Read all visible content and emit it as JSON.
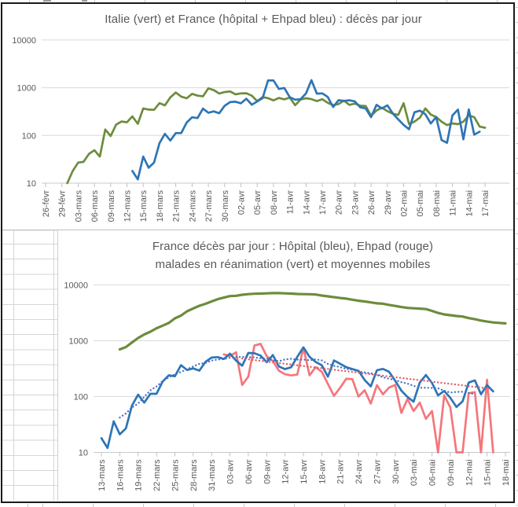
{
  "chart_data": [
    {
      "type": "line",
      "title": "Italie (vert) et France (hôpital + Ehpad bleu) : décès par jour",
      "y_scale": "log",
      "ylim": [
        10,
        10000
      ],
      "y_tick_labels": [
        "10",
        "100",
        "1000",
        "10000"
      ],
      "x_tick_interval_days": 3,
      "x_tick_labels": [
        "26-févr",
        "29-févr",
        "03-mars",
        "06-mars",
        "09-mars",
        "12-mars",
        "15-mars",
        "18-mars",
        "21-mars",
        "24-mars",
        "27-mars",
        "30-mars",
        "02-avr",
        "05-avr",
        "08-avr",
        "11-avr",
        "14-avr",
        "17-avr",
        "20-avr",
        "23-avr",
        "26-avr",
        "29-avr",
        "02-mai",
        "05-mai",
        "08-mai",
        "11-mai",
        "14-mai",
        "17-mai"
      ],
      "grid": "horizontal",
      "legend": "none",
      "series": [
        {
          "id": "italie",
          "name": "Italie (vert)",
          "color": "#6d8c3c",
          "line_style": "solid",
          "start_offset_days": 4,
          "values": [
            10,
            18,
            27,
            28,
            41,
            49,
            36,
            133,
            97,
            168,
            196,
            189,
            250,
            175,
            368,
            349,
            345,
            475,
            427,
            627,
            793,
            651,
            601,
            743,
            683,
            662,
            969,
            889,
            756,
            812,
            837,
            727,
            760,
            766,
            681,
            525,
            636,
            604,
            542,
            610,
            570,
            619,
            431,
            566,
            602,
            578,
            525,
            575,
            482,
            433,
            454,
            534,
            437,
            464,
            420,
            415,
            260,
            333,
            382,
            323,
            285,
            269,
            474,
            174,
            195,
            236,
            369,
            274,
            243,
            194,
            165,
            179,
            172,
            195,
            262,
            242,
            153,
            145
          ]
        },
        {
          "id": "france-hopital-ehpad",
          "name": "France hôpital + Ehpad (bleu)",
          "color": "#2e75b6",
          "line_style": "solid",
          "start_offset_days": 16,
          "values": [
            18,
            12,
            36,
            21,
            27,
            69,
            108,
            78,
            112,
            112,
            186,
            240,
            231,
            365,
            299,
            319,
            292,
            418,
            499,
            509,
            471,
            588,
            441,
            515,
            605,
            1417,
            1422,
            941,
            987,
            635,
            561,
            574,
            762,
            1438,
            753,
            761,
            642,
            395,
            547,
            531,
            544,
            516,
            389,
            369,
            242,
            437,
            367,
            427,
            289,
            218,
            166,
            135,
            306,
            330,
            278,
            178,
            243,
            80,
            70,
            263,
            348,
            83,
            351,
            104,
            120
          ]
        }
      ]
    },
    {
      "type": "line",
      "title_line1": "France décès par jour : Hôpital (bleu), Ehpad (rouge)",
      "title_line2": "malades en réanimation (vert) et moyennes mobiles",
      "y_scale": "log",
      "ylim": [
        10,
        10000
      ],
      "y_tick_labels": [
        "10",
        "100",
        "1000",
        "10000"
      ],
      "x_tick_interval_days": 3,
      "x_tick_labels": [
        "13-mars",
        "16-mars",
        "19-mars",
        "22-mars",
        "25-mars",
        "28-mars",
        "31-mars",
        "03-avr",
        "06-avr",
        "09-avr",
        "12-avr",
        "15-avr",
        "18-avr",
        "21-avr",
        "24-avr",
        "27-avr",
        "30-avr",
        "03-mai",
        "06-mai",
        "09-mai",
        "12-mai",
        "15-mai",
        "18-mai"
      ],
      "grid": "horizontal",
      "legend": "none",
      "series": [
        {
          "id": "reanimation",
          "name": "malades en réanimation (vert)",
          "color": "#6d8c3c",
          "line_style": "solid",
          "start_offset_days": 3,
          "values": [
            699,
            771,
            931,
            1122,
            1297,
            1453,
            1674,
            1861,
            2082,
            2516,
            2827,
            3375,
            3787,
            4236,
            4592,
            5056,
            5565,
            5940,
            6305,
            6399,
            6662,
            6838,
            6953,
            7004,
            7066,
            7131,
            7148,
            7066,
            7004,
            6883,
            6845,
            6821,
            6730,
            6457,
            6248,
            6027,
            5833,
            5683,
            5433,
            5218,
            5053,
            4870,
            4682,
            4608,
            4387,
            4207,
            4019,
            3878,
            3819,
            3770,
            3696,
            3430,
            3147,
            2961,
            2868,
            2776,
            2712,
            2542,
            2428,
            2299,
            2203,
            2132,
            2087,
            2048
          ]
        },
        {
          "id": "hopital",
          "name": "Hôpital décès par jour (bleu)",
          "color": "#2e75b6",
          "line_style": "solid",
          "start_offset_days": 0,
          "values": [
            18,
            12,
            36,
            21,
            27,
            69,
            108,
            78,
            112,
            112,
            186,
            240,
            231,
            365,
            299,
            319,
            292,
            418,
            499,
            509,
            471,
            588,
            441,
            357,
            605,
            597,
            541,
            412,
            554,
            345,
            310,
            335,
            514,
            762,
            514,
            418,
            364,
            227,
            444,
            387,
            336,
            311,
            289,
            198,
            152,
            295,
            313,
            278,
            191,
            128,
            98,
            81,
            178,
            243,
            175,
            105,
            126,
            95,
            65,
            82,
            178,
            195,
            110,
            160,
            124
          ]
        },
        {
          "id": "ehpad",
          "name": "Ehpad décès par jour (rouge)",
          "color": "#f4767c",
          "line_style": "solid",
          "start_offset_days": 20,
          "values": [
            570,
            532,
            620,
            161,
            228,
            820,
            881,
            529,
            433,
            290,
            251,
            239,
            248,
            755,
            240,
            336,
            278,
            168,
            103,
            144,
            208,
            205,
            100,
            130,
            75,
            160,
            110,
            145,
            161,
            51,
            90,
            55,
            78,
            40,
            55,
            8,
            105,
            64,
            10,
            6,
            115,
            120,
            8,
            200,
            5
          ]
        },
        {
          "id": "moyenne-mobile-hopital",
          "name": "moyenne mobile Hôpital (pointillé bleu)",
          "color": "#4472c4",
          "line_style": "dotted",
          "start_offset_days": 3,
          "values": [
            42,
            50,
            64,
            75,
            99,
            129,
            152,
            189,
            221,
            250,
            276,
            309,
            346,
            386,
            401,
            442,
            460,
            469,
            496,
            510,
            514,
            506,
            501,
            487,
            481,
            442,
            430,
            462,
            476,
            457,
            460,
            448,
            463,
            445,
            384,
            355,
            337,
            313,
            302,
            281,
            271,
            262,
            245,
            222,
            208,
            198,
            181,
            171,
            156,
            144,
            144,
            143,
            141,
            127,
            118,
            121,
            122,
            116,
            110
          ]
        },
        {
          "id": "moyenne-mobile-ehpad",
          "name": "moyenne mobile Ehpad (pointillé rouge)",
          "color": "#e0585f",
          "line_style": "dotted",
          "start_offset_days": 23,
          "values": [
            480,
            465,
            451,
            438,
            424,
            411,
            399,
            387,
            375,
            364,
            353,
            342,
            332,
            322,
            312,
            303,
            293,
            285,
            276,
            268,
            259,
            252,
            244,
            237,
            229,
            222,
            216,
            209,
            203,
            197,
            191,
            185,
            179,
            174,
            169,
            164,
            159,
            154,
            149,
            145,
            140
          ]
        }
      ]
    }
  ],
  "colors": {
    "gridline": "#dadada",
    "axis_line": "#c9c9c9",
    "tick": "#c0c0c0",
    "label_text": "#595959",
    "title_text": "#595959",
    "sheet_cell_line": "#d6d6d6",
    "frame": "#1a1a1a"
  }
}
